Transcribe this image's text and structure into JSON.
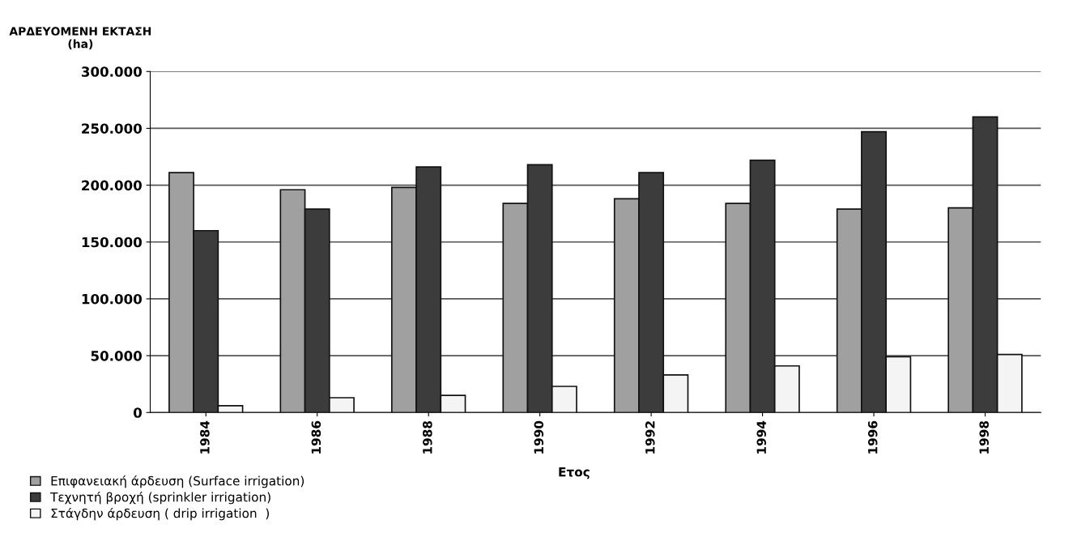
{
  "chart_data": {
    "type": "bar",
    "categories": [
      "1984",
      "1986",
      "1988",
      "1990",
      "1992",
      "1994",
      "1996",
      "1998"
    ],
    "series": [
      {
        "name": "Επιφανειακή άρδευση (Surface irrigation)",
        "color": "#a0a0a0",
        "values": [
          211000,
          196000,
          198000,
          184000,
          188000,
          184000,
          179000,
          180000
        ]
      },
      {
        "name": "Τεχνητή βροχή (sprinkler irrigation)",
        "color": "#3c3c3c",
        "values": [
          160000,
          179000,
          216000,
          218000,
          211000,
          222000,
          247000,
          260000
        ]
      },
      {
        "name": "Στάγδην άρδευση ( drip irrigation  )",
        "color": "#f4f4f4",
        "values": [
          6000,
          13000,
          15000,
          23000,
          33000,
          41000,
          49000,
          51000
        ]
      }
    ],
    "ylabel": "ΑΡΔΕΥΟΜΕΝΗ ΕΚΤΑΣΗ (ha)",
    "xlabel": "Ετος",
    "ylim": [
      0,
      300000
    ],
    "yticks": [
      {
        "value": 0,
        "label": "0"
      },
      {
        "value": 50000,
        "label": "50.000"
      },
      {
        "value": 100000,
        "label": "100.000"
      },
      {
        "value": 150000,
        "label": "150.000"
      },
      {
        "value": 200000,
        "label": "200.000"
      },
      {
        "value": 250000,
        "label": "250.000"
      },
      {
        "value": 300000,
        "label": "300.000"
      }
    ],
    "grid": "y",
    "legend": "bottom left"
  }
}
